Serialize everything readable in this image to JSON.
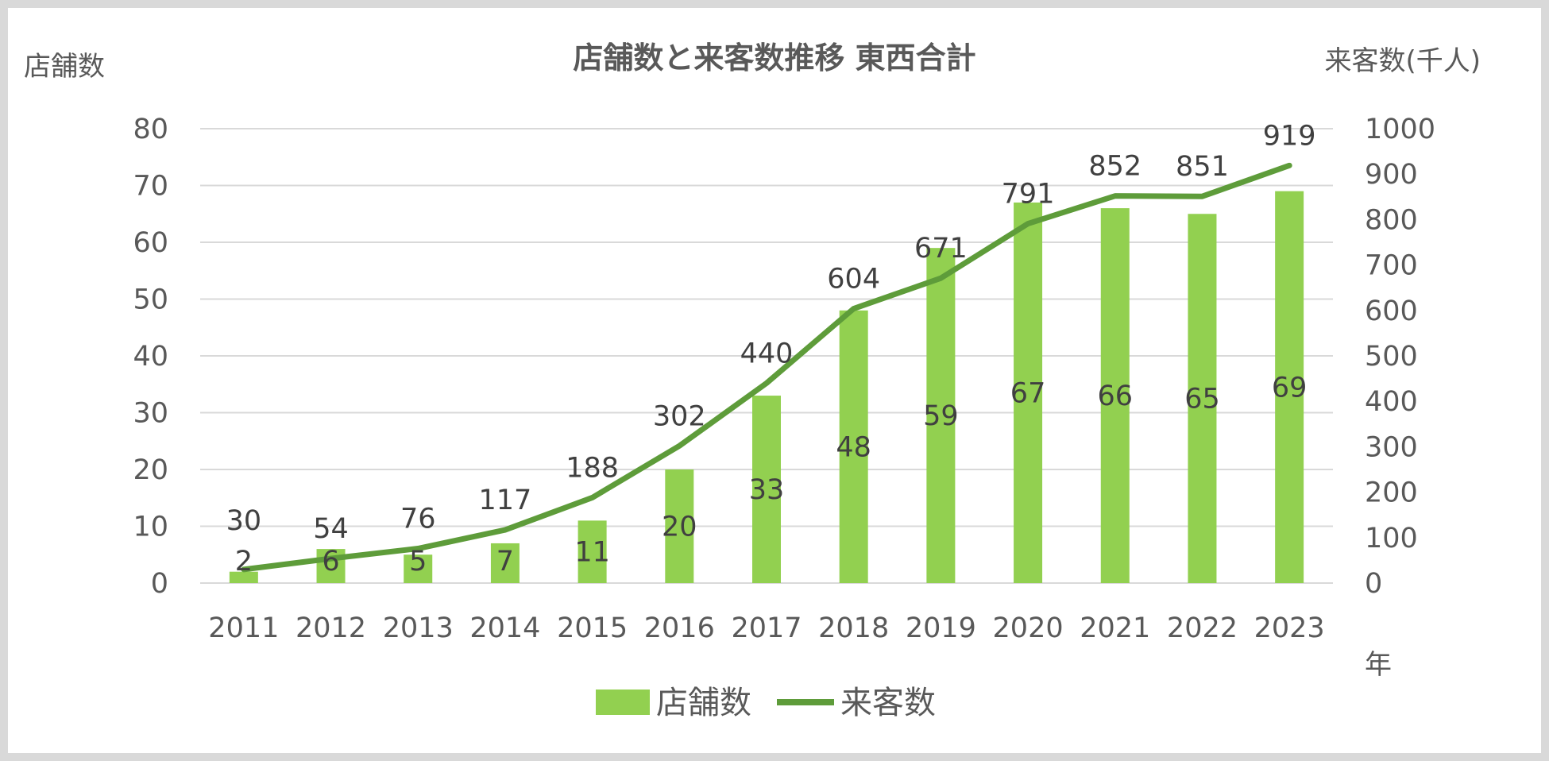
{
  "chart_data": {
    "type": "bar+line",
    "title": "店舗数と来客数推移 東西合計",
    "y_left_label": "店舗数",
    "y_right_label": "来客数(千人)",
    "x_label": "年",
    "categories": [
      "2011",
      "2012",
      "2013",
      "2014",
      "2015",
      "2016",
      "2017",
      "2018",
      "2019",
      "2020",
      "2021",
      "2022",
      "2023"
    ],
    "y_left_ticks": [
      "0",
      "10",
      "20",
      "30",
      "40",
      "50",
      "60",
      "70",
      "80"
    ],
    "y_right_ticks": [
      "0",
      "100",
      "200",
      "300",
      "400",
      "500",
      "600",
      "700",
      "800",
      "900",
      "1000"
    ],
    "y_left_lim": [
      0,
      80
    ],
    "y_right_lim": [
      0,
      1000
    ],
    "grid": true,
    "legend_position": "bottom",
    "series": [
      {
        "name": "店舗数",
        "type": "bar",
        "axis": "left",
        "color": "#92d050",
        "values": [
          2,
          6,
          5,
          7,
          11,
          20,
          33,
          48,
          59,
          67,
          66,
          65,
          69
        ]
      },
      {
        "name": "来客数",
        "type": "line",
        "axis": "right",
        "color": "#5e9c3a",
        "values": [
          30,
          54,
          76,
          117,
          188,
          302,
          440,
          604,
          671,
          791,
          852,
          851,
          919
        ]
      }
    ]
  }
}
